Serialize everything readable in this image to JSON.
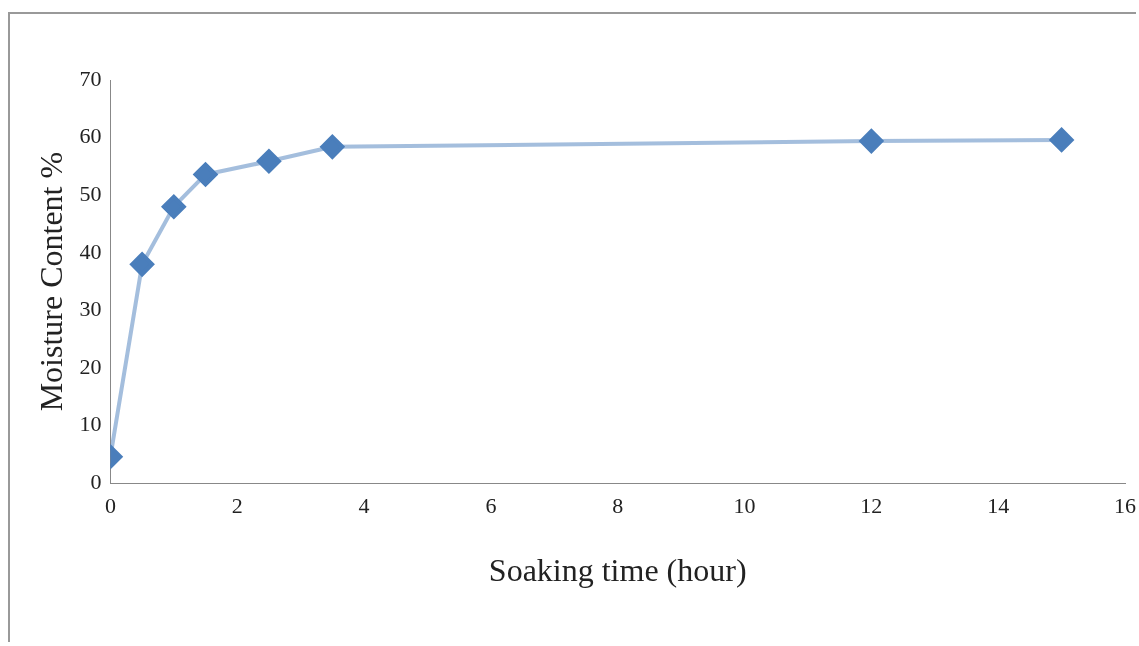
{
  "chart_data": {
    "type": "line",
    "xlabel": "Soaking time (hour)",
    "ylabel": "Moisture Content %",
    "x": [
      0,
      0.5,
      1,
      1.5,
      2.5,
      3.5,
      12,
      15
    ],
    "series": [
      {
        "color": "#4a7ebb",
        "values": [
          4.6,
          38,
          48,
          53.6,
          55.9,
          58.4,
          59.4,
          59.6
        ]
      }
    ],
    "xlim": [
      0,
      16
    ],
    "xticks": [
      0,
      2,
      4,
      6,
      8,
      10,
      12,
      14,
      16
    ],
    "ylim": [
      0,
      70
    ],
    "yticks": [
      0,
      10,
      20,
      30,
      40,
      50,
      60,
      70
    ],
    "grid": false,
    "legend": false,
    "marker": "diamond",
    "line_style": "solid"
  }
}
